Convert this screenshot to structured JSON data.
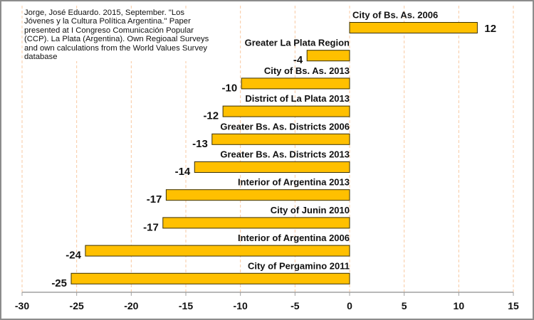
{
  "source_note": "Jorge, José Eduardo. 2015, September. \"Los Jóvenes y la Cultura Política Argentina.\" Paper presented at I Congreso Comunicación Popular (CCP). La Plata (Argentina). Own Regioaal Surveys and own calculations from the World Values Survey database",
  "chart_data": {
    "type": "bar",
    "orientation": "horizontal",
    "categories": [
      "City of Bs. As. 2006",
      "Greater La Plata Region",
      "City of Bs. As. 2013",
      "District of La Plata 2013",
      "Greater Bs. As. Districts 2006",
      "Greater Bs. As. Districts 2013",
      "Interior of Argentina 2013",
      "City of Junin 2010",
      "Interior of Argentina 2006",
      "City of Pergamino 2011"
    ],
    "values": [
      11.7,
      -3.9,
      -9.9,
      -11.6,
      -12.6,
      -14.2,
      -16.8,
      -17.1,
      -24.2,
      -25.5
    ],
    "data_labels": [
      "12",
      "-4",
      "-10",
      "-12",
      "-13",
      "-14",
      "-17",
      "-17",
      "-24",
      "-25"
    ],
    "xlim": [
      -30,
      15
    ],
    "xticks": [
      "-30",
      "-25",
      "-20",
      "-15",
      "-10",
      "-5",
      "0",
      "5",
      "10",
      "15"
    ],
    "grid": "vertical dashed",
    "colors": {
      "bar": "#FFC000",
      "bar_border": "#3a3000",
      "grid": "#f8c8a0",
      "axis": "#a0a0a0"
    },
    "title": "",
    "xlabel": "",
    "ylabel": ""
  }
}
